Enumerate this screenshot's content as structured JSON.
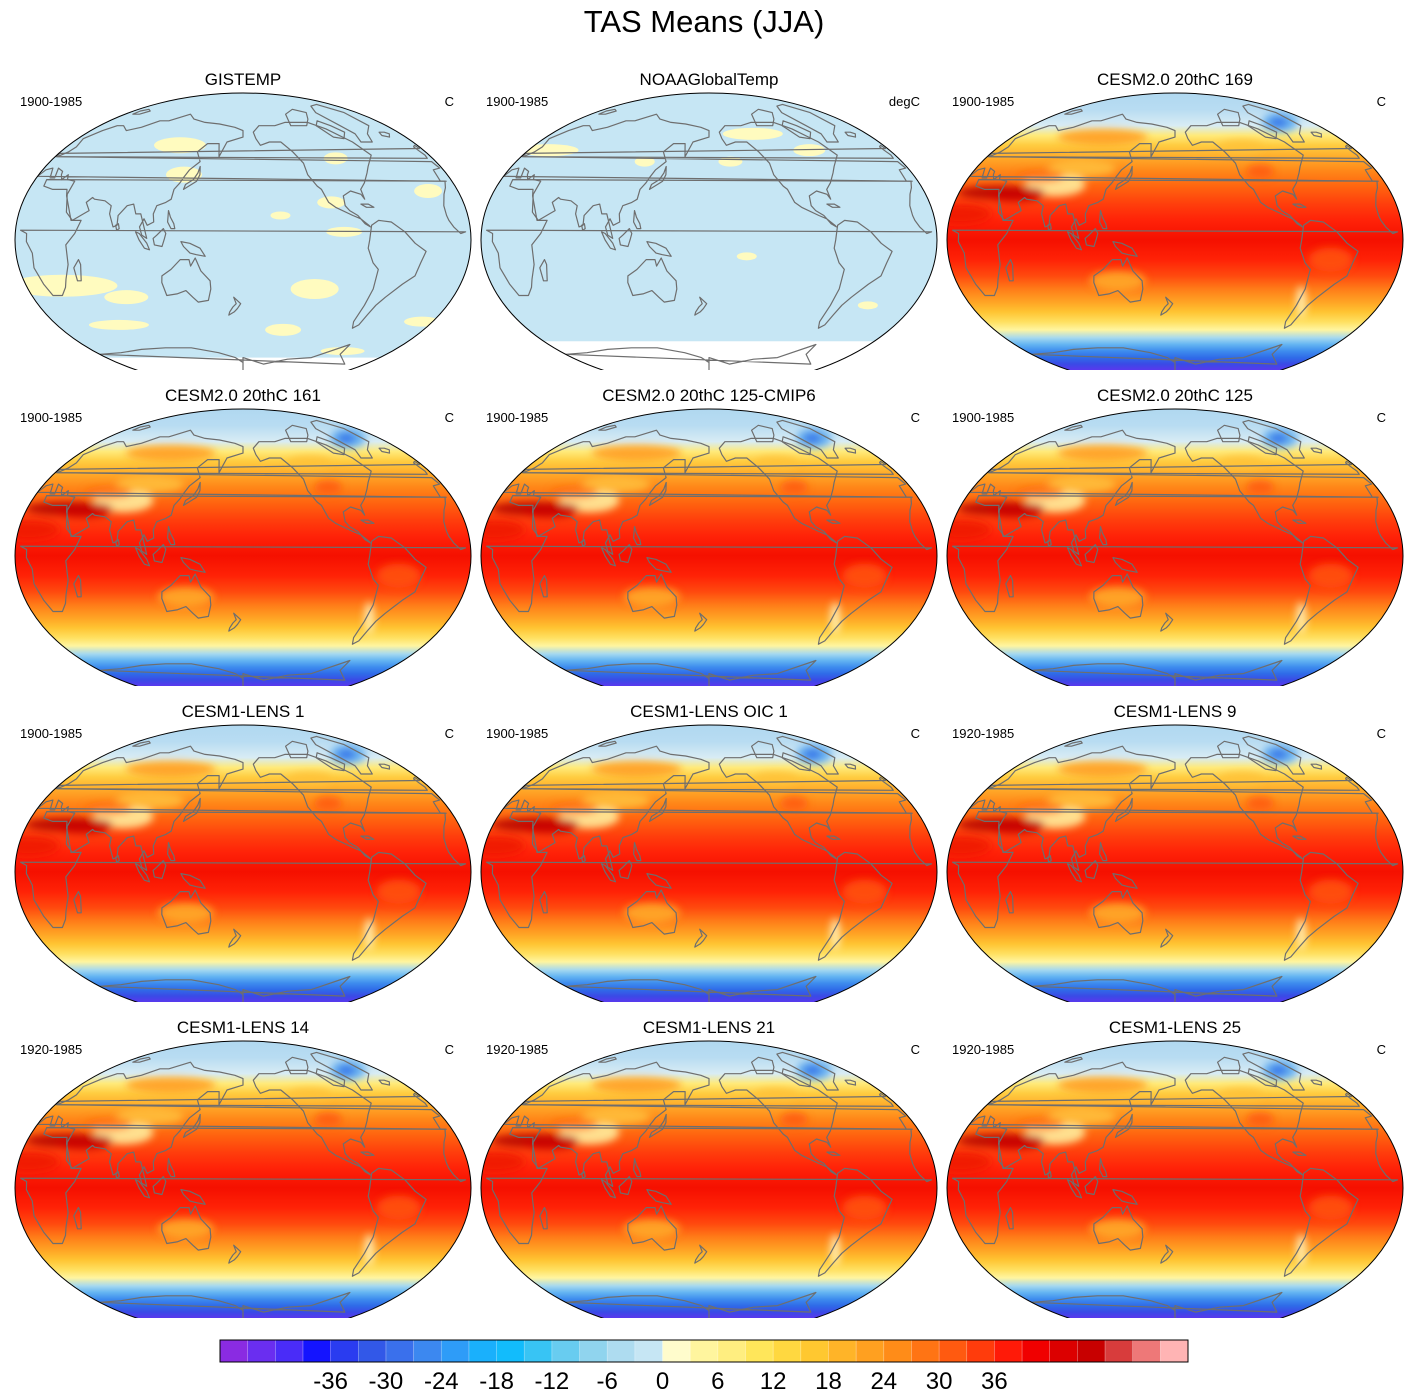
{
  "title": "TAS Means (JJA)",
  "panels": [
    {
      "title": "GISTEMP",
      "period": "1900-1985",
      "units": "C",
      "kind": "obs1"
    },
    {
      "title": "NOAAGlobalTemp",
      "period": "1900-1985",
      "units": "degC",
      "kind": "obs2"
    },
    {
      "title": "CESM2.0 20thC 169",
      "period": "1900-1985",
      "units": "C",
      "kind": "model"
    },
    {
      "title": "CESM2.0 20thC 161",
      "period": "1900-1985",
      "units": "C",
      "kind": "model"
    },
    {
      "title": "CESM2.0 20thC 125-CMIP6",
      "period": "1900-1985",
      "units": "C",
      "kind": "model"
    },
    {
      "title": "CESM2.0 20thC 125",
      "period": "1900-1985",
      "units": "C",
      "kind": "model"
    },
    {
      "title": "CESM1-LENS 1",
      "period": "1900-1985",
      "units": "C",
      "kind": "model"
    },
    {
      "title": "CESM1-LENS OIC 1",
      "period": "1900-1985",
      "units": "C",
      "kind": "model"
    },
    {
      "title": "CESM1-LENS 9",
      "period": "1920-1985",
      "units": "C",
      "kind": "model"
    },
    {
      "title": "CESM1-LENS 14",
      "period": "1920-1985",
      "units": "C",
      "kind": "model"
    },
    {
      "title": "CESM1-LENS 21",
      "period": "1920-1985",
      "units": "C",
      "kind": "model"
    },
    {
      "title": "CESM1-LENS 25",
      "period": "1920-1985",
      "units": "C",
      "kind": "model"
    }
  ],
  "colorbar": {
    "tick_labels": [
      "-36",
      "-30",
      "-24",
      "-18",
      "-12",
      "-6",
      "0",
      "6",
      "12",
      "18",
      "24",
      "30",
      "36"
    ],
    "colors": [
      "#8a2be2",
      "#6a2ef0",
      "#4a2cf8",
      "#1414ff",
      "#2a3cf0",
      "#3258e8",
      "#3a70ec",
      "#3c88f0",
      "#2e9cf8",
      "#1ab0fc",
      "#12bcfc",
      "#38c4f4",
      "#68ccf0",
      "#90d4ee",
      "#aedcf0",
      "#c6e6f4",
      "#fffccc",
      "#fff59e",
      "#ffee80",
      "#ffe65a",
      "#ffd840",
      "#ffc830",
      "#ffb428",
      "#ffa020",
      "#ff8c18",
      "#ff7414",
      "#ff5a10",
      "#ff3c0c",
      "#ff1a08",
      "#f00000",
      "#dc0000",
      "#c80000",
      "#d83c3c",
      "#ee7878",
      "#ffb4b4"
    ]
  }
}
